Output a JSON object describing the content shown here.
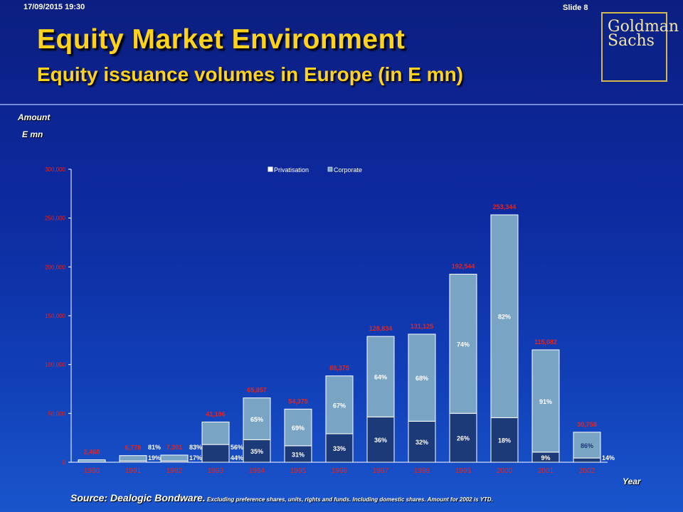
{
  "header": {
    "datestamp": "17/09/2015 19:30",
    "slide_number": "Slide 8",
    "title": "Equity Market Environment",
    "subtitle": "Equity issuance volumes in Europe (in E mn)",
    "logo_line1": "Goldman",
    "logo_line2": "Sachs"
  },
  "footer": {
    "source": "Source:  Dealogic Bondware.",
    "note": " Excluding preference shares, units, rights and funds. Including domestic shares. Amount for 2002 is YTD."
  },
  "colors": {
    "privatisation": "#1c3a78",
    "corporate": "#7aa4c4",
    "total_label": "#e8241c",
    "axis": "#ffffff"
  },
  "chart_data": {
    "type": "bar",
    "stacked": true,
    "ylabel_line1": "Amount",
    "ylabel_line2": "E mn",
    "xlabel": "Year",
    "ylim": [
      0,
      300000
    ],
    "yticks": [
      "0",
      "50,000",
      "100,000",
      "150,000",
      "200,000",
      "250,000",
      "300,000"
    ],
    "legend_position": "top-center",
    "categories": [
      "1990",
      "1991",
      "1992",
      "1993",
      "1994",
      "1995",
      "1996",
      "1997",
      "1998",
      "1999",
      "2000",
      "2001",
      "2002"
    ],
    "totals": [
      2460,
      6778,
      7301,
      41196,
      65857,
      54375,
      88375,
      128834,
      131125,
      192544,
      253344,
      115082,
      30758
    ],
    "total_labels": [
      "2,460",
      "6,778",
      "7,301",
      "41,196",
      "65,857",
      "54,375",
      "88,375",
      "128,834",
      "131,125",
      "192,544",
      "253,344",
      "115,082",
      "30,758"
    ],
    "series": [
      {
        "name": "Privatisation",
        "share_pct": [
          null,
          19,
          17,
          44,
          35,
          31,
          33,
          36,
          32,
          26,
          18,
          9,
          14
        ]
      },
      {
        "name": "Corporate",
        "share_pct": [
          null,
          81,
          83,
          56,
          65,
          69,
          67,
          64,
          68,
          74,
          82,
          91,
          86
        ]
      }
    ],
    "share_labels": {
      "privatisation": [
        "",
        "19%",
        "17%",
        "44%",
        "35%",
        "31%",
        "33%",
        "36%",
        "32%",
        "26%",
        "18%",
        "9%",
        "14%"
      ],
      "corporate": [
        "",
        "81%",
        "83%",
        "56%",
        "65%",
        "69%",
        "67%",
        "64%",
        "68%",
        "74%",
        "82%",
        "91%",
        "86%"
      ]
    }
  }
}
